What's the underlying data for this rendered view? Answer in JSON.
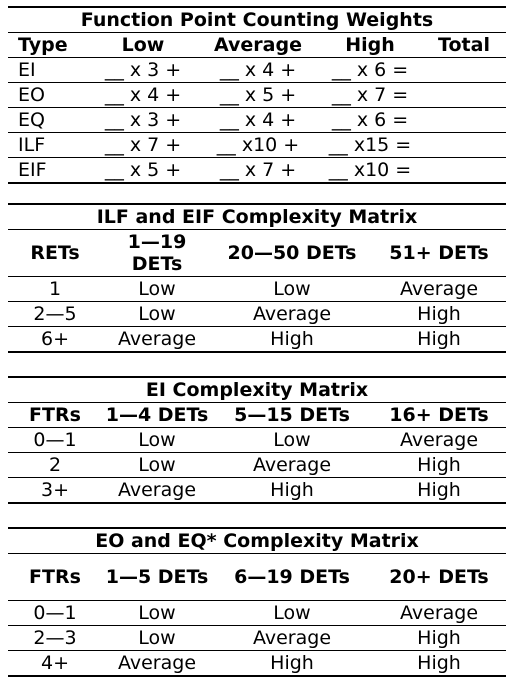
{
  "weights": {
    "title": "Function Point Counting Weights",
    "headers": [
      "Type",
      "Low",
      "Average",
      "High",
      "Total"
    ],
    "rows": [
      [
        "EI",
        "__ x 3 +",
        "__ x 4 +",
        "__ x 6 =",
        ""
      ],
      [
        "EO",
        "__ x 4 +",
        "__ x 5 +",
        "__ x 7 =",
        ""
      ],
      [
        "EQ",
        "__ x 3 +",
        "__ x 4 +",
        "__ x 6 =",
        ""
      ],
      [
        "ILF",
        "__ x 7 +",
        "__ x10 +",
        "__ x15 =",
        ""
      ],
      [
        "EIF",
        "__ x 5 +",
        "__ x 7 +",
        "__ x10 =",
        ""
      ]
    ]
  },
  "ilf_eif": {
    "title": "ILF and EIF Complexity Matrix",
    "headers": [
      "RETs",
      "1—19 DETs",
      "20—50 DETs",
      "51+ DETs"
    ],
    "rows": [
      [
        "1",
        "Low",
        "Low",
        "Average"
      ],
      [
        "2—5",
        "Low",
        "Average",
        "High"
      ],
      [
        "6+",
        "Average",
        "High",
        "High"
      ]
    ]
  },
  "ei": {
    "title": "EI Complexity Matrix",
    "headers": [
      "FTRs",
      "1—4 DETs",
      "5—15 DETs",
      "16+ DETs"
    ],
    "rows": [
      [
        "0—1",
        "Low",
        "Low",
        "Average"
      ],
      [
        "2",
        "Low",
        "Average",
        "High"
      ],
      [
        "3+",
        "Average",
        "High",
        "High"
      ]
    ]
  },
  "eo_eq": {
    "title": "EO and EQ* Complexity Matrix",
    "headers": [
      "FTRs",
      "1—5 DETs",
      "6—19 DETs",
      "20+ DETs"
    ],
    "rows": [
      [
        "0—1",
        "Low",
        "Low",
        "Average"
      ],
      [
        "2—3",
        "Low",
        "Average",
        "High"
      ],
      [
        "4+",
        "Average",
        "High",
        "High"
      ]
    ]
  }
}
